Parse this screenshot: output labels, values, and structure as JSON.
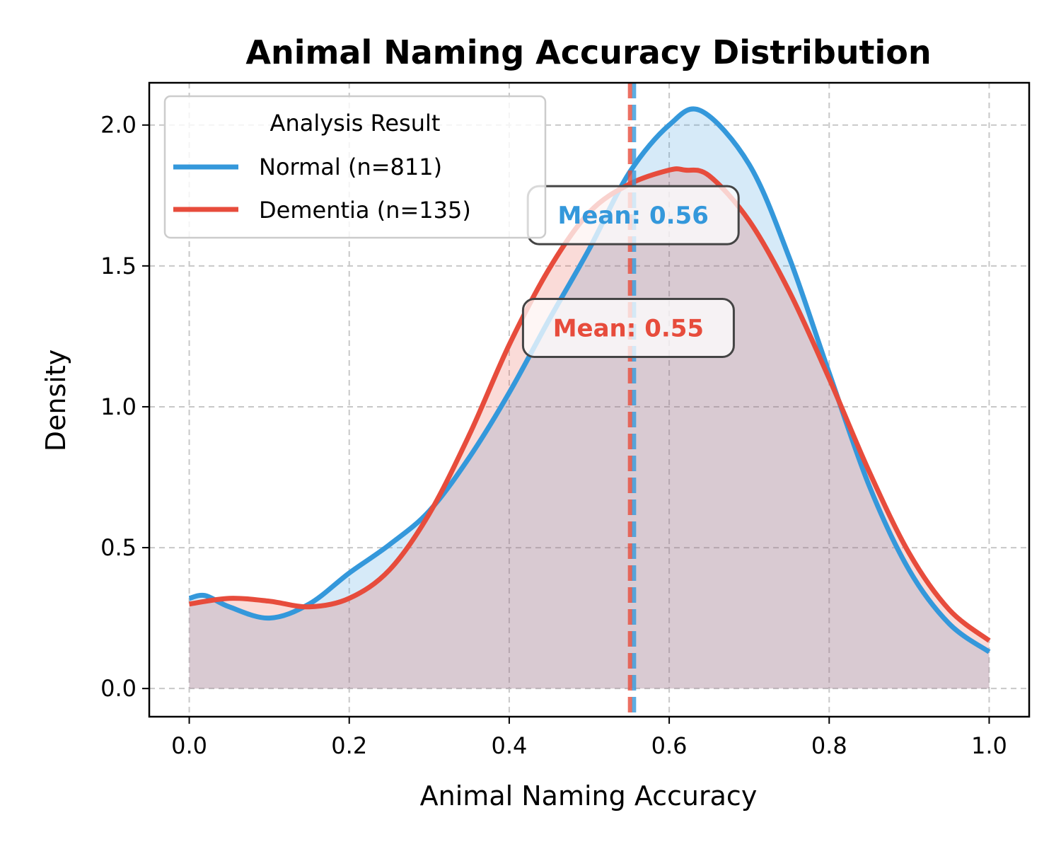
{
  "chart_data": {
    "type": "area",
    "title": "Animal Naming Accuracy Distribution",
    "xlabel": "Animal Naming Accuracy",
    "ylabel": "Density",
    "xlim": [
      -0.05,
      1.05
    ],
    "ylim": [
      -0.1,
      2.15
    ],
    "xticks": [
      0.0,
      0.2,
      0.4,
      0.6,
      0.8,
      1.0
    ],
    "xtick_labels": [
      "0.0",
      "0.2",
      "0.4",
      "0.6",
      "0.8",
      "1.0"
    ],
    "yticks": [
      0.0,
      0.5,
      1.0,
      1.5,
      2.0
    ],
    "ytick_labels": [
      "0.0",
      "0.5",
      "1.0",
      "1.5",
      "2.0"
    ],
    "grid": true,
    "legend": {
      "title": "Analysis Result",
      "position": "upper-left"
    },
    "series": [
      {
        "name": "Normal (n=811)",
        "color": "#3498db",
        "mean": 0.556,
        "mean_label": "Mean: 0.56",
        "x": [
          0.0,
          0.02,
          0.05,
          0.1,
          0.15,
          0.2,
          0.25,
          0.3,
          0.35,
          0.4,
          0.45,
          0.5,
          0.55,
          0.6,
          0.64,
          0.7,
          0.75,
          0.8,
          0.85,
          0.9,
          0.95,
          1.0
        ],
        "y": [
          0.32,
          0.33,
          0.29,
          0.25,
          0.3,
          0.41,
          0.51,
          0.63,
          0.82,
          1.05,
          1.31,
          1.56,
          1.83,
          2.0,
          2.05,
          1.86,
          1.53,
          1.12,
          0.72,
          0.42,
          0.23,
          0.13
        ]
      },
      {
        "name": "Dementia (n=135)",
        "color": "#e74c3c",
        "mean": 0.551,
        "mean_label": "Mean: 0.55",
        "x": [
          0.0,
          0.05,
          0.1,
          0.15,
          0.2,
          0.25,
          0.3,
          0.35,
          0.4,
          0.45,
          0.5,
          0.55,
          0.6,
          0.62,
          0.65,
          0.7,
          0.75,
          0.8,
          0.85,
          0.9,
          0.95,
          1.0
        ],
        "y": [
          0.3,
          0.32,
          0.31,
          0.29,
          0.32,
          0.42,
          0.62,
          0.9,
          1.22,
          1.49,
          1.69,
          1.79,
          1.84,
          1.84,
          1.82,
          1.66,
          1.41,
          1.1,
          0.77,
          0.48,
          0.28,
          0.17
        ]
      }
    ],
    "annotations": [
      {
        "text": "Mean: 0.56",
        "color": "#3498db",
        "x": 0.555,
        "y": 1.68
      },
      {
        "text": "Mean: 0.55",
        "color": "#e74c3c",
        "x": 0.549,
        "y": 1.28
      }
    ]
  }
}
